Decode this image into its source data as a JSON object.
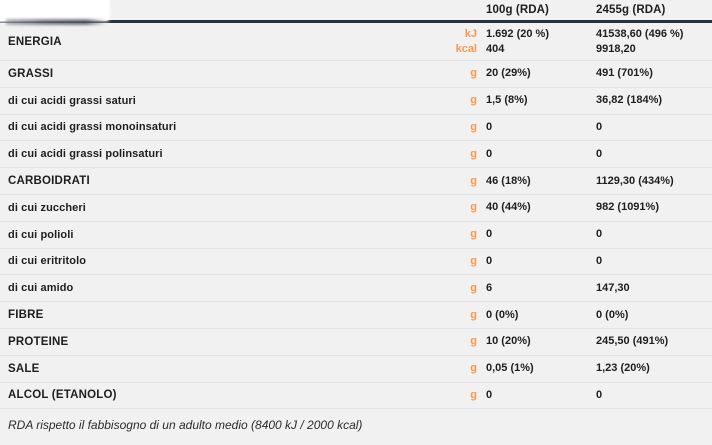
{
  "header": {
    "col_per100": "100g (RDA)",
    "col_per_portion": "2455g (RDA)"
  },
  "rows": [
    {
      "label": "ENERGIA",
      "type": "main",
      "units": [
        "kJ",
        "kcal"
      ],
      "per100": [
        "1.692 (20 %)",
        "404"
      ],
      "per_portion": [
        "41538,60 (496 %)",
        "9918,20"
      ]
    },
    {
      "label": "GRASSI",
      "type": "main",
      "units": [
        "g"
      ],
      "per100": [
        "20 (29%)"
      ],
      "per_portion": [
        "491 (701%)"
      ]
    },
    {
      "label": "di cui acidi grassi saturi",
      "type": "sub",
      "units": [
        "g"
      ],
      "per100": [
        "1,5 (8%)"
      ],
      "per_portion": [
        "36,82  (184%)"
      ]
    },
    {
      "label": "di cui acidi grassi monoinsaturi",
      "type": "sub",
      "units": [
        "g"
      ],
      "per100": [
        "0"
      ],
      "per_portion": [
        "0"
      ]
    },
    {
      "label": "di cui acidi grassi polinsaturi",
      "type": "sub",
      "units": [
        "g"
      ],
      "per100": [
        "0"
      ],
      "per_portion": [
        "0"
      ]
    },
    {
      "label": "CARBOIDRATI",
      "type": "main",
      "units": [
        "g"
      ],
      "per100": [
        "46 (18%)"
      ],
      "per_portion": [
        "1129,30 (434%)"
      ]
    },
    {
      "label": "di cui zuccheri",
      "type": "sub",
      "units": [
        "g"
      ],
      "per100": [
        "40 (44%)"
      ],
      "per_portion": [
        "982 (1091%)"
      ]
    },
    {
      "label": "di cui polioli",
      "type": "sub",
      "units": [
        "g"
      ],
      "per100": [
        "0"
      ],
      "per_portion": [
        "0"
      ]
    },
    {
      "label": "di cui eritritolo",
      "type": "sub",
      "units": [
        "g"
      ],
      "per100": [
        "0"
      ],
      "per_portion": [
        "0"
      ]
    },
    {
      "label": "di cui amido",
      "type": "sub",
      "units": [
        "g"
      ],
      "per100": [
        "6"
      ],
      "per_portion": [
        "147,30"
      ]
    },
    {
      "label": "FIBRE",
      "type": "main",
      "units": [
        "g"
      ],
      "per100": [
        "0 (0%)"
      ],
      "per_portion": [
        "0 (0%)"
      ]
    },
    {
      "label": "PROTEINE",
      "type": "main",
      "units": [
        "g"
      ],
      "per100": [
        "10 (20%)"
      ],
      "per_portion": [
        "245,50 (491%)"
      ]
    },
    {
      "label": "SALE",
      "type": "main",
      "units": [
        "g"
      ],
      "per100": [
        "0,05 (1%)"
      ],
      "per_portion": [
        "1,23 (20%)"
      ]
    },
    {
      "label": "ALCOL (ETANOLO)",
      "type": "main",
      "units": [
        "g"
      ],
      "per100": [
        "0"
      ],
      "per_portion": [
        "0"
      ]
    }
  ],
  "footer": {
    "note": "RDA rispetto il fabbisogno di un adulto medio (8400 kJ / 2000 kcal)"
  },
  "colors": {
    "accent_orange": "#F8984C",
    "header_line": "#27313E",
    "row_separator": "#E4E4EC",
    "background": "#F1F1F2",
    "text": "#1E1E1E"
  }
}
